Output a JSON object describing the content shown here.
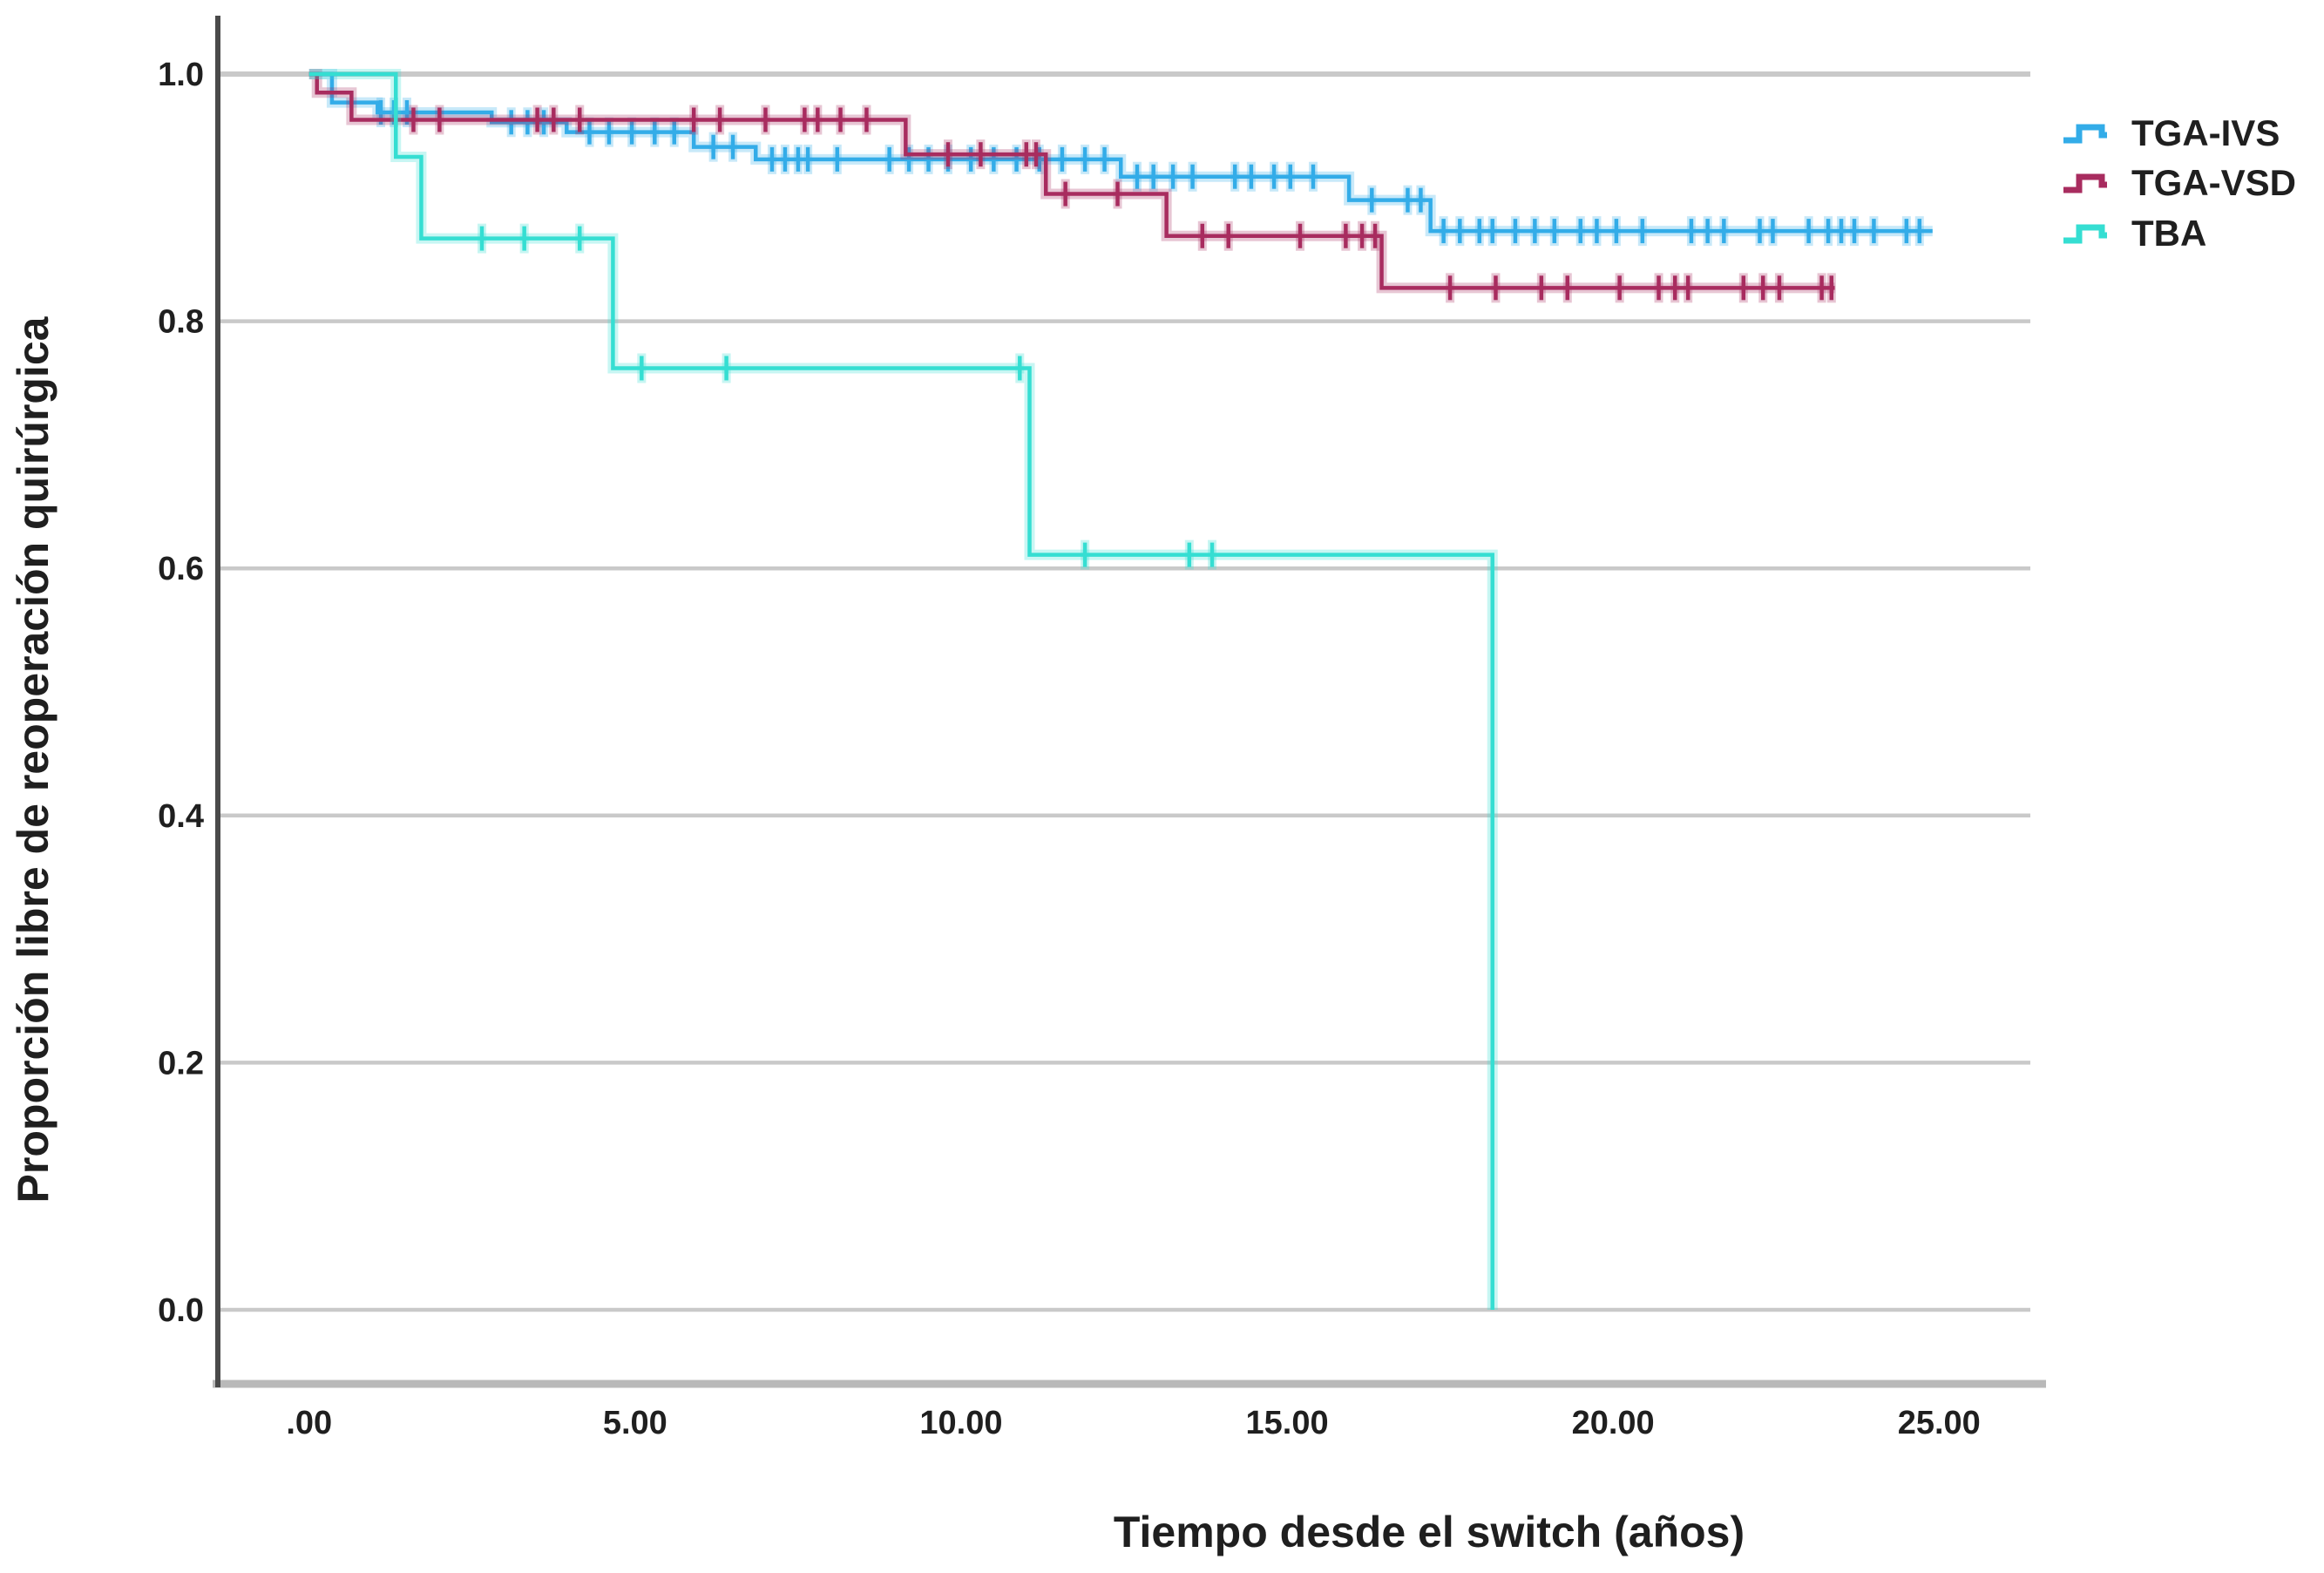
{
  "chart_data": {
    "type": "line",
    "subtype": "kaplan-meier-step",
    "title": "",
    "xlabel": "Tiempo desde el switch (años)",
    "ylabel": "Proporción libre de reoperación quirúrgica",
    "xlim": [
      -1.4,
      26.4
    ],
    "ylim": [
      0.0,
      1.0
    ],
    "grid": "horizontal-y",
    "grid_color": "#c9c9c9",
    "axis_color": "#4a4a4a",
    "baseline_color": "#b9b9b9",
    "text_color": "#1f1f1f",
    "background_color": "#ffffff",
    "x_ticks": [
      {
        "value": 0,
        "label": ".00"
      },
      {
        "value": 5,
        "label": "5.00"
      },
      {
        "value": 10,
        "label": "10.00"
      },
      {
        "value": 15,
        "label": "15.00"
      },
      {
        "value": 20,
        "label": "20.00"
      },
      {
        "value": 25,
        "label": "25.00"
      }
    ],
    "y_ticks": [
      {
        "value": 1.0,
        "label": "1.0"
      },
      {
        "value": 0.8,
        "label": "0.8"
      },
      {
        "value": 0.6,
        "label": "0.6"
      },
      {
        "value": 0.4,
        "label": "0.4"
      },
      {
        "value": 0.2,
        "label": "0.2"
      },
      {
        "value": 0.0,
        "label": "0.0"
      }
    ],
    "legend": {
      "position": "top-right",
      "entries": [
        {
          "label": "TGA-IVS",
          "color": "#33ace8"
        },
        {
          "label": "TGA-VSD",
          "color": "#a82c5f"
        },
        {
          "label": "TBA",
          "color": "#35ded2"
        }
      ]
    },
    "series": [
      {
        "name": "TGA-IVS",
        "color": "#33ace8",
        "points": [
          [
            0,
            1.0
          ],
          [
            0.35,
            0.977
          ],
          [
            1.05,
            0.969
          ],
          [
            2.8,
            0.961
          ],
          [
            3.95,
            0.953
          ],
          [
            5.9,
            0.941
          ],
          [
            6.85,
            0.931
          ],
          [
            12.45,
            0.917
          ],
          [
            15.95,
            0.898
          ],
          [
            17.2,
            0.873
          ]
        ],
        "end_t": 24.9,
        "censors": [
          [
            1.1,
            0.969
          ],
          [
            1.3,
            0.969
          ],
          [
            1.5,
            0.969
          ],
          [
            3.1,
            0.961
          ],
          [
            3.35,
            0.961
          ],
          [
            3.6,
            0.961
          ],
          [
            4.3,
            0.953
          ],
          [
            4.6,
            0.953
          ],
          [
            4.95,
            0.953
          ],
          [
            5.3,
            0.953
          ],
          [
            5.6,
            0.953
          ],
          [
            6.2,
            0.941
          ],
          [
            6.5,
            0.941
          ],
          [
            7.1,
            0.931
          ],
          [
            7.3,
            0.931
          ],
          [
            7.5,
            0.931
          ],
          [
            7.65,
            0.931
          ],
          [
            8.1,
            0.931
          ],
          [
            8.9,
            0.931
          ],
          [
            9.2,
            0.931
          ],
          [
            9.5,
            0.931
          ],
          [
            9.8,
            0.931
          ],
          [
            10.15,
            0.931
          ],
          [
            10.5,
            0.931
          ],
          [
            10.85,
            0.931
          ],
          [
            11.2,
            0.931
          ],
          [
            11.55,
            0.931
          ],
          [
            11.9,
            0.931
          ],
          [
            12.2,
            0.931
          ],
          [
            12.7,
            0.917
          ],
          [
            12.95,
            0.917
          ],
          [
            13.25,
            0.917
          ],
          [
            13.55,
            0.917
          ],
          [
            14.2,
            0.917
          ],
          [
            14.45,
            0.917
          ],
          [
            14.8,
            0.917
          ],
          [
            15.05,
            0.917
          ],
          [
            15.4,
            0.917
          ],
          [
            16.3,
            0.898
          ],
          [
            16.85,
            0.898
          ],
          [
            17.05,
            0.898
          ],
          [
            17.4,
            0.873
          ],
          [
            17.65,
            0.873
          ],
          [
            17.95,
            0.873
          ],
          [
            18.15,
            0.873
          ],
          [
            18.5,
            0.873
          ],
          [
            18.8,
            0.873
          ],
          [
            19.1,
            0.873
          ],
          [
            19.5,
            0.873
          ],
          [
            19.75,
            0.873
          ],
          [
            20.05,
            0.873
          ],
          [
            20.45,
            0.873
          ],
          [
            21.2,
            0.873
          ],
          [
            21.45,
            0.873
          ],
          [
            21.7,
            0.873
          ],
          [
            22.25,
            0.873
          ],
          [
            22.45,
            0.873
          ],
          [
            23.0,
            0.873
          ],
          [
            23.3,
            0.873
          ],
          [
            23.5,
            0.873
          ],
          [
            23.7,
            0.873
          ],
          [
            24.0,
            0.873
          ],
          [
            24.5,
            0.873
          ],
          [
            24.7,
            0.873
          ]
        ]
      },
      {
        "name": "TGA-VSD",
        "color": "#a82c5f",
        "points": [
          [
            0,
            1.0
          ],
          [
            0.12,
            0.985
          ],
          [
            0.65,
            0.963
          ],
          [
            9.15,
            0.935
          ],
          [
            11.3,
            0.903
          ],
          [
            13.15,
            0.869
          ],
          [
            16.45,
            0.827
          ]
        ],
        "end_t": 23.4,
        "censors": [
          [
            1.6,
            0.963
          ],
          [
            2.0,
            0.963
          ],
          [
            3.5,
            0.963
          ],
          [
            3.75,
            0.963
          ],
          [
            4.15,
            0.963
          ],
          [
            5.9,
            0.963
          ],
          [
            6.3,
            0.963
          ],
          [
            7.0,
            0.963
          ],
          [
            7.6,
            0.963
          ],
          [
            7.8,
            0.963
          ],
          [
            8.15,
            0.963
          ],
          [
            8.55,
            0.963
          ],
          [
            9.8,
            0.935
          ],
          [
            10.3,
            0.935
          ],
          [
            11.0,
            0.935
          ],
          [
            11.15,
            0.935
          ],
          [
            11.6,
            0.903
          ],
          [
            12.4,
            0.903
          ],
          [
            13.7,
            0.869
          ],
          [
            14.1,
            0.869
          ],
          [
            15.2,
            0.869
          ],
          [
            15.9,
            0.869
          ],
          [
            16.15,
            0.869
          ],
          [
            16.35,
            0.869
          ],
          [
            17.5,
            0.827
          ],
          [
            18.2,
            0.827
          ],
          [
            18.9,
            0.827
          ],
          [
            19.3,
            0.827
          ],
          [
            20.1,
            0.827
          ],
          [
            20.7,
            0.827
          ],
          [
            20.95,
            0.827
          ],
          [
            21.15,
            0.827
          ],
          [
            22.0,
            0.827
          ],
          [
            22.3,
            0.827
          ],
          [
            22.55,
            0.827
          ],
          [
            23.2,
            0.827
          ],
          [
            23.35,
            0.827
          ]
        ]
      },
      {
        "name": "TBA",
        "color": "#35ded2",
        "points": [
          [
            0,
            1.0
          ],
          [
            1.33,
            0.933
          ],
          [
            1.72,
            0.867
          ],
          [
            4.66,
            0.762
          ],
          [
            11.05,
            0.611
          ],
          [
            18.15,
            0.0
          ]
        ],
        "end_t": null,
        "censors": [
          [
            2.65,
            0.867
          ],
          [
            3.3,
            0.867
          ],
          [
            4.15,
            0.867
          ],
          [
            5.1,
            0.762
          ],
          [
            6.4,
            0.762
          ],
          [
            10.9,
            0.762
          ],
          [
            11.9,
            0.611
          ],
          [
            13.5,
            0.611
          ],
          [
            13.85,
            0.611
          ]
        ]
      }
    ]
  }
}
